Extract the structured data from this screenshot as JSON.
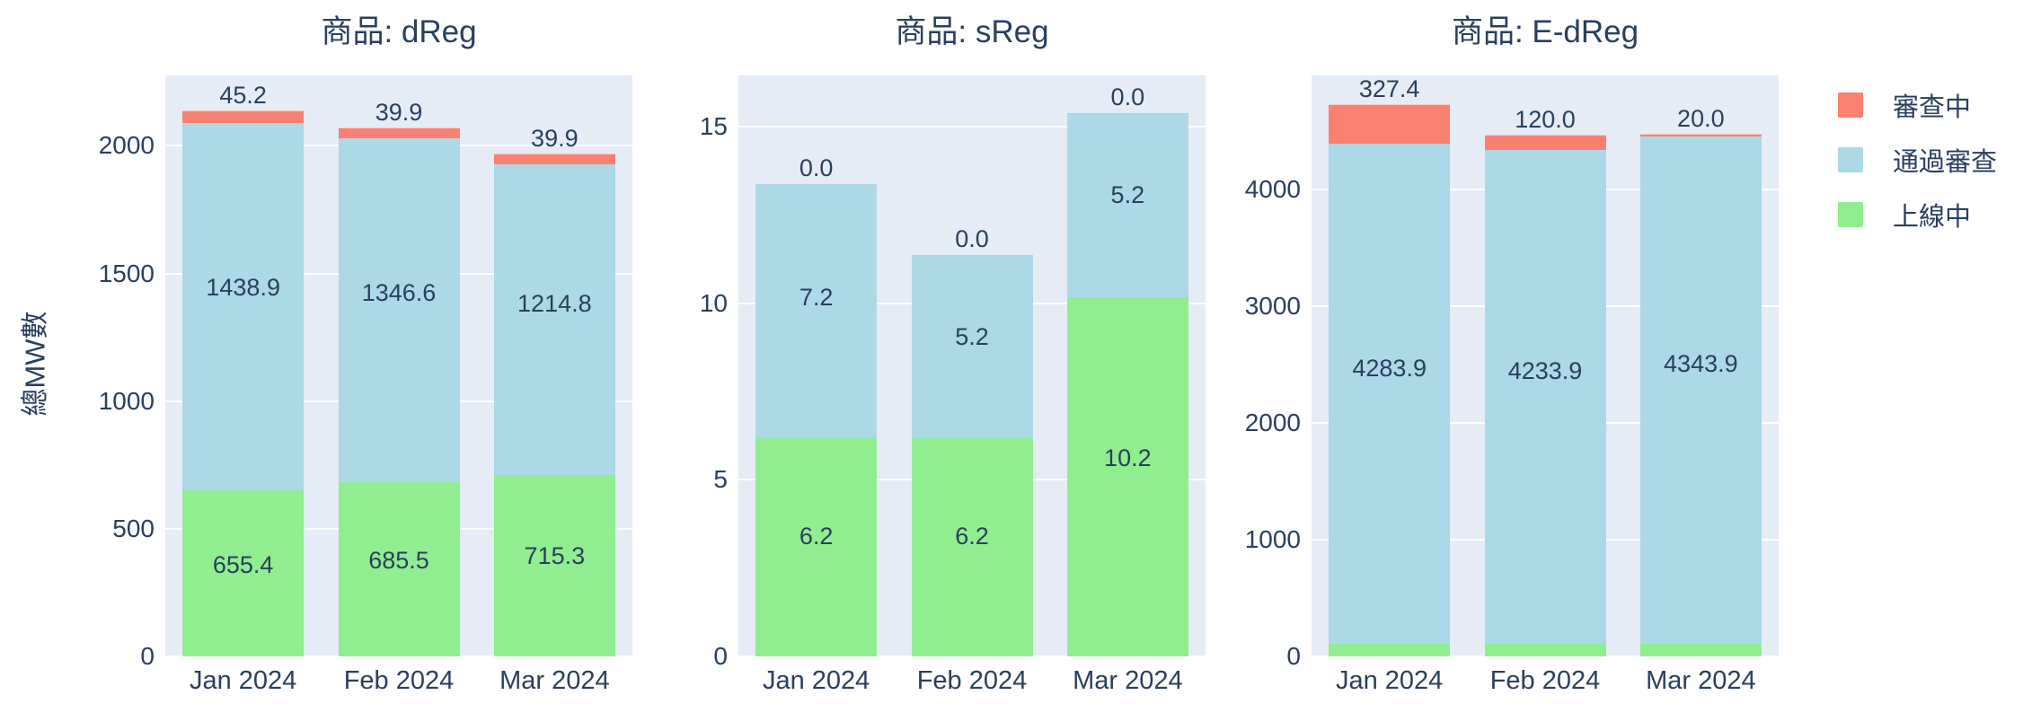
{
  "figure": {
    "ylabel": "總MW數",
    "colors": {
      "text": "#2a3f5f",
      "plot_background": "#E5ECF6",
      "gridline": "#ffffff",
      "page_background": "#ffffff"
    },
    "legend": {
      "items": [
        {
          "label": "審查中",
          "color": "#FA8072"
        },
        {
          "label": "通過審查",
          "color": "#ADD8E6"
        },
        {
          "label": "上線中",
          "color": "#90EE90"
        }
      ]
    }
  },
  "chart_data": [
    {
      "type": "bar",
      "stacked": true,
      "title": "商品: dReg",
      "categories": [
        "Jan 2024",
        "Feb 2024",
        "Mar 2024"
      ],
      "series": [
        {
          "name": "上線中",
          "color": "#90EE90",
          "values": [
            655.4,
            685.5,
            715.3
          ]
        },
        {
          "name": "通過審查",
          "color": "#ADD8E6",
          "values": [
            1438.9,
            1346.6,
            1214.8
          ]
        },
        {
          "name": "審查中",
          "color": "#FA8072",
          "values": [
            45.2,
            39.9,
            39.9
          ]
        }
      ],
      "yticks": [
        0,
        500,
        1000,
        1500,
        2000
      ],
      "ylim": [
        0,
        2276
      ],
      "grid": true,
      "value_labels": true
    },
    {
      "type": "bar",
      "stacked": true,
      "title": "商品: sReg",
      "categories": [
        "Jan 2024",
        "Feb 2024",
        "Mar 2024"
      ],
      "series": [
        {
          "name": "上線中",
          "color": "#90EE90",
          "values": [
            6.2,
            6.2,
            10.2
          ]
        },
        {
          "name": "通過審查",
          "color": "#ADD8E6",
          "values": [
            7.2,
            5.2,
            5.2
          ]
        },
        {
          "name": "審查中",
          "color": "#FA8072",
          "values": [
            0.0,
            0.0,
            0.0
          ]
        }
      ],
      "yticks": [
        0,
        5,
        10,
        15
      ],
      "ylim": [
        0,
        16.45
      ],
      "grid": true,
      "value_labels": true
    },
    {
      "type": "bar",
      "stacked": true,
      "title": "商品: E-dReg",
      "categories": [
        "Jan 2024",
        "Feb 2024",
        "Mar 2024"
      ],
      "series": [
        {
          "name": "上線中",
          "color": "#90EE90",
          "values": [
            116.0,
            116.0,
            116.0
          ]
        },
        {
          "name": "通過審查",
          "color": "#ADD8E6",
          "values": [
            4283.9,
            4233.9,
            4343.9
          ]
        },
        {
          "name": "審查中",
          "color": "#FA8072",
          "values": [
            327.4,
            120.0,
            20.0
          ]
        }
      ],
      "yticks": [
        0,
        1000,
        2000,
        3000,
        4000
      ],
      "ylim": [
        0,
        4977
      ],
      "grid": true,
      "value_labels": true
    }
  ]
}
